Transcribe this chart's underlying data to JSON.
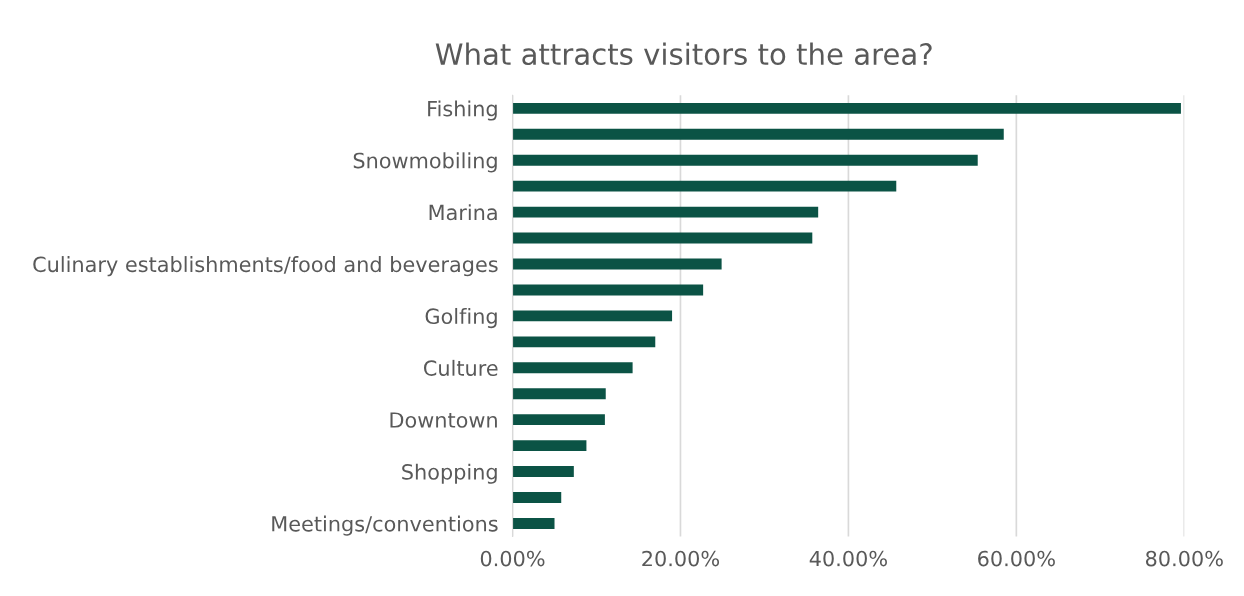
{
  "chart_data": {
    "type": "bar",
    "orientation": "horizontal",
    "title": "What attracts visitors to the area?",
    "categories": [
      "Fishing",
      null,
      "Snowmobiling",
      null,
      "Marina",
      null,
      "Culinary establishments/food and beverages",
      null,
      "Golfing",
      null,
      "Culture",
      null,
      "Downtown",
      null,
      "Shopping",
      null,
      "Meetings/conventions"
    ],
    "values": [
      79.6,
      58.5,
      55.4,
      45.7,
      36.4,
      35.7,
      24.9,
      22.7,
      19.0,
      17.0,
      14.3,
      11.1,
      11.0,
      8.8,
      7.3,
      5.8,
      5.0
    ],
    "color": "#0b5345",
    "xlim": [
      0,
      80
    ],
    "xticks": [
      {
        "value": 0,
        "label": "0.00%"
      },
      {
        "value": 20,
        "label": "20.00%"
      },
      {
        "value": 40,
        "label": "40.00%"
      },
      {
        "value": 60,
        "label": "60.00%"
      },
      {
        "value": 80,
        "label": "80.00%"
      }
    ],
    "grid": "x",
    "legend": false
  }
}
